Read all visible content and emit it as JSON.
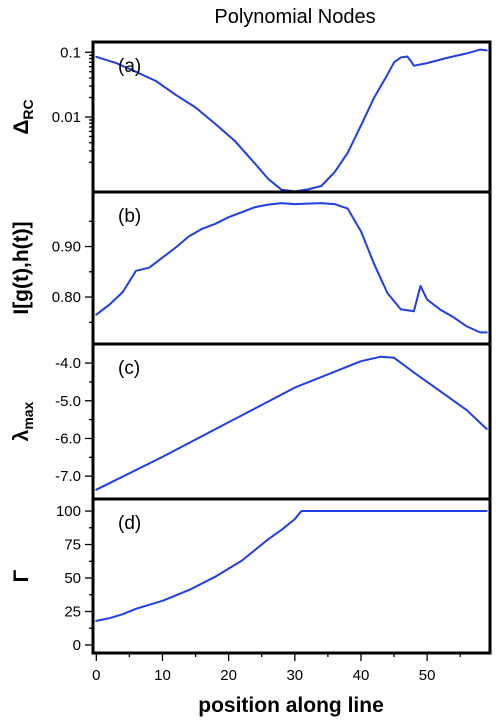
{
  "title": "Polynomial Nodes",
  "xlabel": "position along line",
  "colors": {
    "series": "#1f3fe0",
    "axes": "#000000"
  },
  "chart_data": [
    {
      "type": "line",
      "panel": "(a)",
      "ylabel": "Δ",
      "ylabel_sub": "RC",
      "yscale": "log",
      "ylim": [
        0.0008,
        0.125
      ],
      "yticks": [
        0.01,
        0.1
      ],
      "ytick_labels": [
        "0.01",
        "0.1"
      ],
      "xlim": [
        -0.5,
        59.5
      ],
      "x": [
        0,
        3,
        6,
        9,
        12,
        15,
        18,
        21,
        24,
        26,
        28,
        30,
        32,
        34,
        36,
        38,
        40,
        42,
        44,
        45,
        46,
        47,
        47.5,
        48,
        50,
        53,
        56,
        58,
        59
      ],
      "y": [
        0.085,
        0.068,
        0.05,
        0.036,
        0.022,
        0.014,
        0.0078,
        0.0042,
        0.0019,
        0.0011,
        0.00075,
        0.00071,
        0.00076,
        0.00086,
        0.0014,
        0.0028,
        0.0074,
        0.02,
        0.045,
        0.07,
        0.083,
        0.086,
        0.074,
        0.062,
        0.068,
        0.082,
        0.096,
        0.11,
        0.107
      ]
    },
    {
      "type": "line",
      "panel": "(b)",
      "ylabel": "I[g(t),h(t)]",
      "ylim": [
        0.715,
        1.0
      ],
      "yticks": [
        0.8,
        0.9
      ],
      "ytick_labels": [
        "0.80",
        "0.90"
      ],
      "xlim": [
        -0.5,
        59.5
      ],
      "x": [
        0,
        2,
        4,
        6,
        8,
        10,
        12,
        14,
        16,
        18,
        20,
        22,
        24,
        26,
        28,
        30,
        32,
        34,
        36,
        38,
        40,
        42,
        44,
        46,
        48,
        49,
        50,
        52,
        54,
        56,
        58,
        59
      ],
      "y": [
        0.765,
        0.785,
        0.81,
        0.852,
        0.858,
        0.878,
        0.898,
        0.92,
        0.935,
        0.945,
        0.958,
        0.968,
        0.978,
        0.983,
        0.986,
        0.984,
        0.985,
        0.986,
        0.984,
        0.975,
        0.93,
        0.865,
        0.808,
        0.776,
        0.772,
        0.822,
        0.795,
        0.775,
        0.76,
        0.742,
        0.73,
        0.73
      ]
    },
    {
      "type": "line",
      "panel": "(c)",
      "ylabel": "λ",
      "ylabel_sub": "max",
      "ylim": [
        -7.5,
        -3.6
      ],
      "yticks": [
        -7.0,
        -6.0,
        -5.0,
        -4.0
      ],
      "ytick_labels": [
        "-7.0",
        "-6.0",
        "-5.0",
        "-4.0"
      ],
      "xlim": [
        -0.5,
        59.5
      ],
      "x": [
        0,
        10,
        20,
        30,
        40,
        43,
        45,
        48,
        52,
        56,
        59
      ],
      "y": [
        -7.36,
        -6.49,
        -5.57,
        -4.65,
        -3.95,
        -3.83,
        -3.86,
        -4.25,
        -4.75,
        -5.25,
        -5.75
      ]
    },
    {
      "type": "line",
      "panel": "(d)",
      "ylabel": "Γ",
      "ylim": [
        -3,
        106
      ],
      "yticks": [
        0,
        25,
        50,
        75,
        100
      ],
      "ytick_labels": [
        "0",
        "25",
        "50",
        "75",
        "100"
      ],
      "xlim": [
        -0.5,
        59.5
      ],
      "xticks": [
        0,
        10,
        20,
        30,
        40,
        50
      ],
      "xtick_labels": [
        "0",
        "10",
        "20",
        "30",
        "40",
        "50"
      ],
      "x": [
        0,
        2,
        4,
        6,
        8,
        10,
        12,
        14,
        16,
        18,
        20,
        22,
        24,
        26,
        28,
        30,
        31,
        35,
        40,
        45,
        50,
        55,
        59
      ],
      "y": [
        18,
        20,
        23,
        27,
        30,
        33,
        37,
        41,
        46,
        51,
        57,
        63,
        71,
        79,
        86,
        94,
        100,
        100,
        100,
        100,
        100,
        100,
        100
      ]
    }
  ]
}
